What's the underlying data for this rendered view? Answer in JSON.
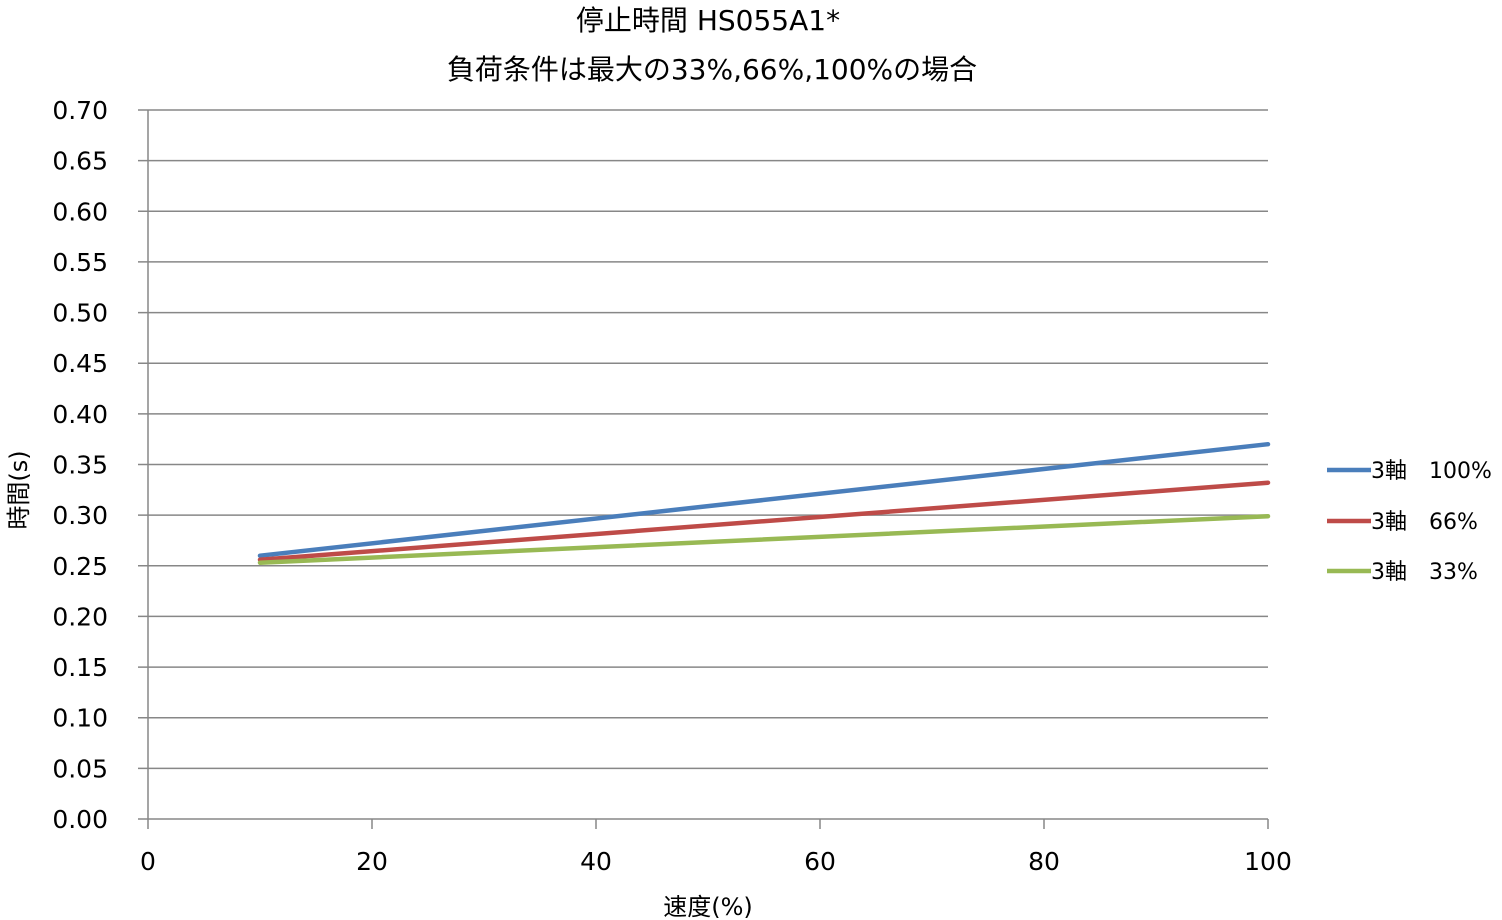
{
  "chart_data": {
    "type": "line",
    "title": [
      "停止時間 HS055A1*",
      "負荷条件は最大の33%,66%,100%の場合"
    ],
    "xlabel": "速度(%)",
    "ylabel": "時間(s)",
    "xlim": [
      0,
      100
    ],
    "ylim": [
      0,
      0.7
    ],
    "x_ticks": [
      "0",
      "20",
      "40",
      "60",
      "80",
      "100"
    ],
    "y_ticks": [
      "0.00",
      "0.05",
      "0.10",
      "0.15",
      "0.20",
      "0.25",
      "0.30",
      "0.35",
      "0.40",
      "0.45",
      "0.50",
      "0.55",
      "0.60",
      "0.65",
      "0.70"
    ],
    "grid": "horizontal",
    "legend_position": "right",
    "series": [
      {
        "name": "3軸　100%",
        "color": "#4a7ebb",
        "x": [
          10,
          100
        ],
        "y": [
          0.26,
          0.37
        ]
      },
      {
        "name": "3軸　66%",
        "color": "#be4b48",
        "x": [
          10,
          100
        ],
        "y": [
          0.256,
          0.332
        ]
      },
      {
        "name": "3軸　33%",
        "color": "#98b954",
        "x": [
          10,
          100
        ],
        "y": [
          0.253,
          0.299
        ]
      }
    ]
  }
}
